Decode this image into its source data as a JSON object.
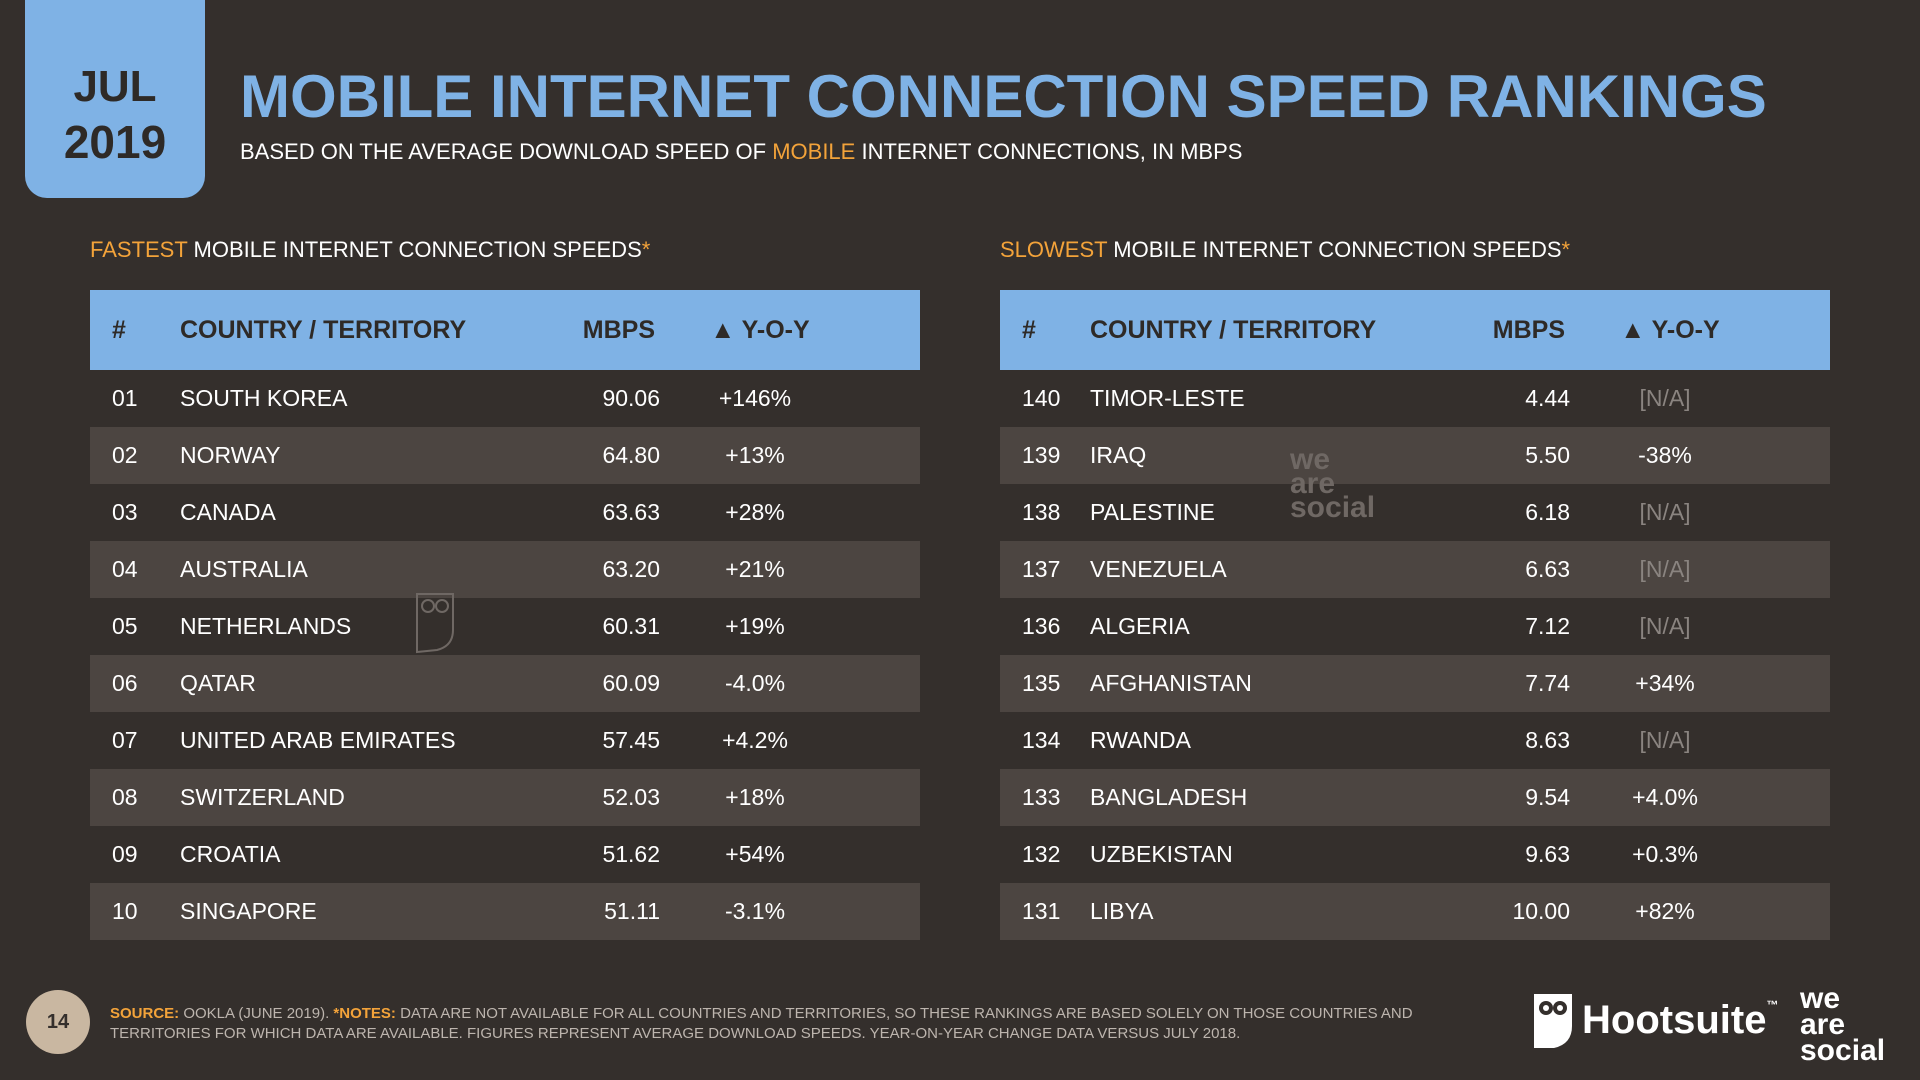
{
  "date_tab": {
    "month": "JUL",
    "year": "2019"
  },
  "title": "MOBILE INTERNET CONNECTION SPEED RANKINGS",
  "subtitle": {
    "before": "BASED ON THE AVERAGE DOWNLOAD SPEED OF ",
    "highlight": "MOBILE",
    "after": " INTERNET CONNECTIONS, IN MBPS"
  },
  "fastest": {
    "label_highlight": "FASTEST",
    "label_rest": " MOBILE INTERNET CONNECTION SPEEDS",
    "star": "*",
    "headers": {
      "rank": "#",
      "country": "COUNTRY / TERRITORY",
      "mbps": "MBPS",
      "yoy": "▲ Y-O-Y"
    },
    "rows": [
      {
        "rank": "01",
        "country": "SOUTH KOREA",
        "mbps": "90.06",
        "yoy": "+146%"
      },
      {
        "rank": "02",
        "country": "NORWAY",
        "mbps": "64.80",
        "yoy": "+13%"
      },
      {
        "rank": "03",
        "country": "CANADA",
        "mbps": "63.63",
        "yoy": "+28%"
      },
      {
        "rank": "04",
        "country": "AUSTRALIA",
        "mbps": "63.20",
        "yoy": "+21%"
      },
      {
        "rank": "05",
        "country": "NETHERLANDS",
        "mbps": "60.31",
        "yoy": "+19%"
      },
      {
        "rank": "06",
        "country": "QATAR",
        "mbps": "60.09",
        "yoy": "-4.0%"
      },
      {
        "rank": "07",
        "country": "UNITED ARAB EMIRATES",
        "mbps": "57.45",
        "yoy": "+4.2%"
      },
      {
        "rank": "08",
        "country": "SWITZERLAND",
        "mbps": "52.03",
        "yoy": "+18%"
      },
      {
        "rank": "09",
        "country": "CROATIA",
        "mbps": "51.62",
        "yoy": "+54%"
      },
      {
        "rank": "10",
        "country": "SINGAPORE",
        "mbps": "51.11",
        "yoy": "-3.1%"
      }
    ]
  },
  "slowest": {
    "label_highlight": "SLOWEST",
    "label_rest": " MOBILE INTERNET CONNECTION SPEEDS",
    "star": "*",
    "headers": {
      "rank": "#",
      "country": "COUNTRY / TERRITORY",
      "mbps": "MBPS",
      "yoy": "▲ Y-O-Y"
    },
    "rows": [
      {
        "rank": "140",
        "country": "TIMOR-LESTE",
        "mbps": "4.44",
        "yoy": "[N/A]"
      },
      {
        "rank": "139",
        "country": "IRAQ",
        "mbps": "5.50",
        "yoy": "-38%"
      },
      {
        "rank": "138",
        "country": "PALESTINE",
        "mbps": "6.18",
        "yoy": "[N/A]"
      },
      {
        "rank": "137",
        "country": "VENEZUELA",
        "mbps": "6.63",
        "yoy": "[N/A]"
      },
      {
        "rank": "136",
        "country": "ALGERIA",
        "mbps": "7.12",
        "yoy": "[N/A]"
      },
      {
        "rank": "135",
        "country": "AFGHANISTAN",
        "mbps": "7.74",
        "yoy": "+34%"
      },
      {
        "rank": "134",
        "country": "RWANDA",
        "mbps": "8.63",
        "yoy": "[N/A]"
      },
      {
        "rank": "133",
        "country": "BANGLADESH",
        "mbps": "9.54",
        "yoy": "+4.0%"
      },
      {
        "rank": "132",
        "country": "UZBEKISTAN",
        "mbps": "9.63",
        "yoy": "+0.3%"
      },
      {
        "rank": "131",
        "country": "LIBYA",
        "mbps": "10.00",
        "yoy": "+82%"
      }
    ]
  },
  "watermark": {
    "line1": "we",
    "line2": "are",
    "line3": "social"
  },
  "footer": {
    "page_number": "14",
    "source_label": "SOURCE:",
    "source_text": " OOKLA (JUNE 2019). ",
    "notes_label": "*NOTES:",
    "notes_text": " DATA ARE NOT AVAILABLE FOR ALL COUNTRIES AND TERRITORIES, SO THESE RANKINGS ARE BASED SOLELY ON THOSE COUNTRIES AND TERRITORIES FOR WHICH DATA ARE AVAILABLE. FIGURES REPRESENT AVERAGE DOWNLOAD SPEEDS. YEAR-ON-YEAR CHANGE DATA VERSUS JULY 2018.",
    "hootsuite": "Hootsuite",
    "hootsuite_tm": "™",
    "was": {
      "line1": "we",
      "line2": "are",
      "line3": "social"
    }
  },
  "colors": {
    "background": "#342f2c",
    "accent_blue": "#7fb2e5",
    "accent_orange": "#f3a33a",
    "row_alt": "#4c4541"
  },
  "icons": {
    "owl_watermark": "owl-icon",
    "hootsuite_logo": "hootsuite-owl-icon"
  }
}
